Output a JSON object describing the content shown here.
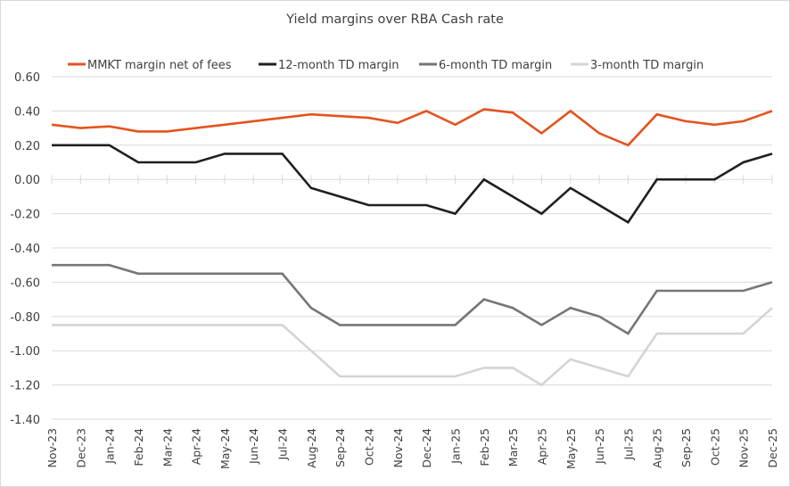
{
  "chart_data": {
    "type": "line",
    "title": "Yield margins over RBA Cash rate",
    "xlabel": "",
    "ylabel": "",
    "ylim": [
      -1.4,
      0.6
    ],
    "yticks": [
      "0.60",
      "0.40",
      "0.20",
      "0.00",
      "-0.20",
      "-0.40",
      "-0.60",
      "-0.80",
      "-1.00",
      "-1.20",
      "-1.40"
    ],
    "ytick_values": [
      0.6,
      0.4,
      0.2,
      0.0,
      -0.2,
      -0.4,
      -0.6,
      -0.8,
      -1.0,
      -1.2,
      -1.4
    ],
    "grid": true,
    "legend_position": "top",
    "categories": [
      "Nov-23",
      "Dec-23",
      "Jan-24",
      "Feb-24",
      "Mar-24",
      "Apr-24",
      "May-24",
      "Jun-24",
      "Jul-24",
      "Aug-24",
      "Sep-24",
      "Oct-24",
      "Nov-24",
      "Dec-24",
      "Jan-25",
      "Feb-25",
      "Mar-25",
      "Apr-25",
      "May-25",
      "Jun-25",
      "Jul-25",
      "Aug-25",
      "Sep-25",
      "Oct-25",
      "Nov-25",
      "Dec-25"
    ],
    "series": [
      {
        "name": "MMKT margin net of fees",
        "color": "#e5531e",
        "values": [
          0.32,
          0.3,
          0.31,
          0.28,
          0.28,
          0.3,
          0.32,
          0.34,
          0.36,
          0.38,
          0.37,
          0.36,
          0.33,
          0.4,
          0.32,
          0.41,
          0.39,
          0.27,
          0.4,
          0.27,
          0.2,
          0.38,
          0.34,
          0.32,
          0.34,
          0.4
        ]
      },
      {
        "name": "12-month TD margin",
        "color": "#1f1f1f",
        "values": [
          0.2,
          0.2,
          0.2,
          0.1,
          0.1,
          0.1,
          0.15,
          0.15,
          0.15,
          -0.05,
          -0.1,
          -0.15,
          -0.15,
          -0.15,
          -0.2,
          0.0,
          -0.1,
          -0.2,
          -0.05,
          -0.15,
          -0.25,
          0.0,
          0.0,
          0.0,
          0.1,
          0.15
        ]
      },
      {
        "name": "6-month TD margin",
        "color": "#767676",
        "values": [
          -0.5,
          -0.5,
          -0.5,
          -0.55,
          -0.55,
          -0.55,
          -0.55,
          -0.55,
          -0.55,
          -0.75,
          -0.85,
          -0.85,
          -0.85,
          -0.85,
          -0.85,
          -0.7,
          -0.75,
          -0.85,
          -0.75,
          -0.8,
          -0.9,
          -0.65,
          -0.65,
          -0.65,
          -0.65,
          -0.6
        ]
      },
      {
        "name": "3-month TD margin",
        "color": "#d4d4d4",
        "values": [
          -0.85,
          -0.85,
          -0.85,
          -0.85,
          -0.85,
          -0.85,
          -0.85,
          -0.85,
          -0.85,
          -1.0,
          -1.15,
          -1.15,
          -1.15,
          -1.15,
          -1.15,
          -1.1,
          -1.1,
          -1.2,
          -1.05,
          -1.1,
          -1.15,
          -0.9,
          -0.9,
          -0.9,
          -0.9,
          -0.75
        ]
      }
    ]
  }
}
